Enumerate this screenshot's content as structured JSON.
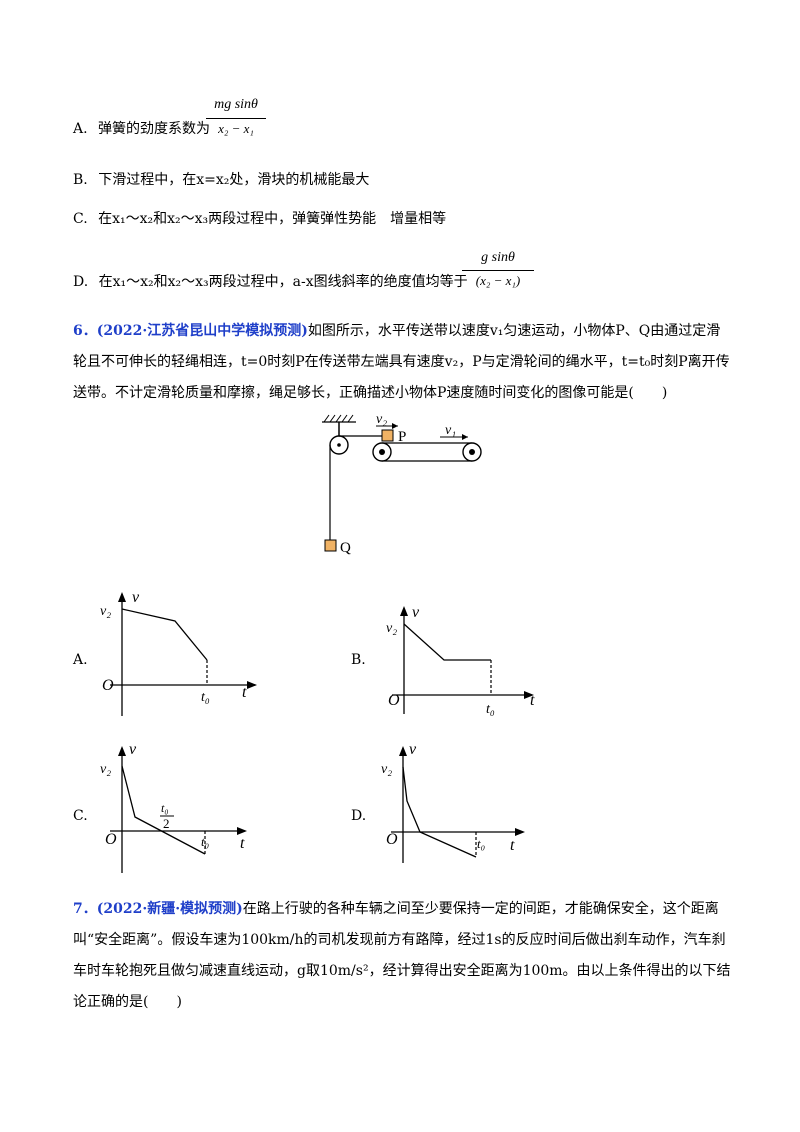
{
  "options_prev": {
    "A": {
      "letter": "A.",
      "text": "弹簧的劲度系数为",
      "numerator": "mg sinθ",
      "denominator": "x₂ − x₁"
    },
    "B": {
      "letter": "B.",
      "text": "下滑过程中，在x=x₂处，滑块的机械能最大"
    },
    "C": {
      "letter": "C.",
      "text": "在x₁～x₂和x₂～x₃两段过程中，弹簧弹性势能　增量相等"
    },
    "D": {
      "letter": "D.",
      "text": "在x₁～x₂和x₂～x₃两段过程中，a-x图线斜率的绝度值均等于",
      "numerator": "g sinθ",
      "denominator": "(x₂ − x₁)"
    }
  },
  "q6": {
    "head": "6．(2022·江苏省昆山中学模拟预测)",
    "body": "如图所示，水平传送带以速度v₁匀速运动，小物体P、Q由通过定滑轮且不可伸长的轻绳相连，t=0时刻P在传送带左端具有速度v₂，P与定滑轮间的绳水平，t=t₀时刻P离开传送带。不计定滑轮质量和摩擦，绳足够长，正确描述小物体P速度随时间变化的图像可能是(　　)",
    "figure": {
      "v2": "v₂",
      "v1": "v₁",
      "P": "P",
      "Q": "Q"
    },
    "graphs": [
      {
        "letter": "A.",
        "v": "v",
        "v2": "v₂",
        "O": "O",
        "t": "t",
        "t0": "t₀"
      },
      {
        "letter": "B.",
        "v": "v",
        "v2": "v₂",
        "O": "O",
        "t": "t",
        "t0": "t₀"
      },
      {
        "letter": "C.",
        "v": "v",
        "v2": "v₂",
        "O": "O",
        "t": "t",
        "t0": "t₀",
        "half_num": "t₀",
        "half_den": "2"
      },
      {
        "letter": "D.",
        "v": "v",
        "v2": "v₂",
        "O": "O",
        "t": "t",
        "t0": "t₀"
      }
    ]
  },
  "q7": {
    "head": "7．(2022·新疆·模拟预测)",
    "body": "在路上行驶的各种车辆之间至少要保持一定的间距，才能确保安全，这个距离叫“安全距离”。假设车速为100km/h的司机发现前方有路障，经过1s的反应时间后做出刹车动作，汽车刹车时车轮抱死且做匀减速直线运动，g取10m/s²，经计算得出安全距离为100m。由以上条件得出的以下结论正确的是(　　)"
  }
}
